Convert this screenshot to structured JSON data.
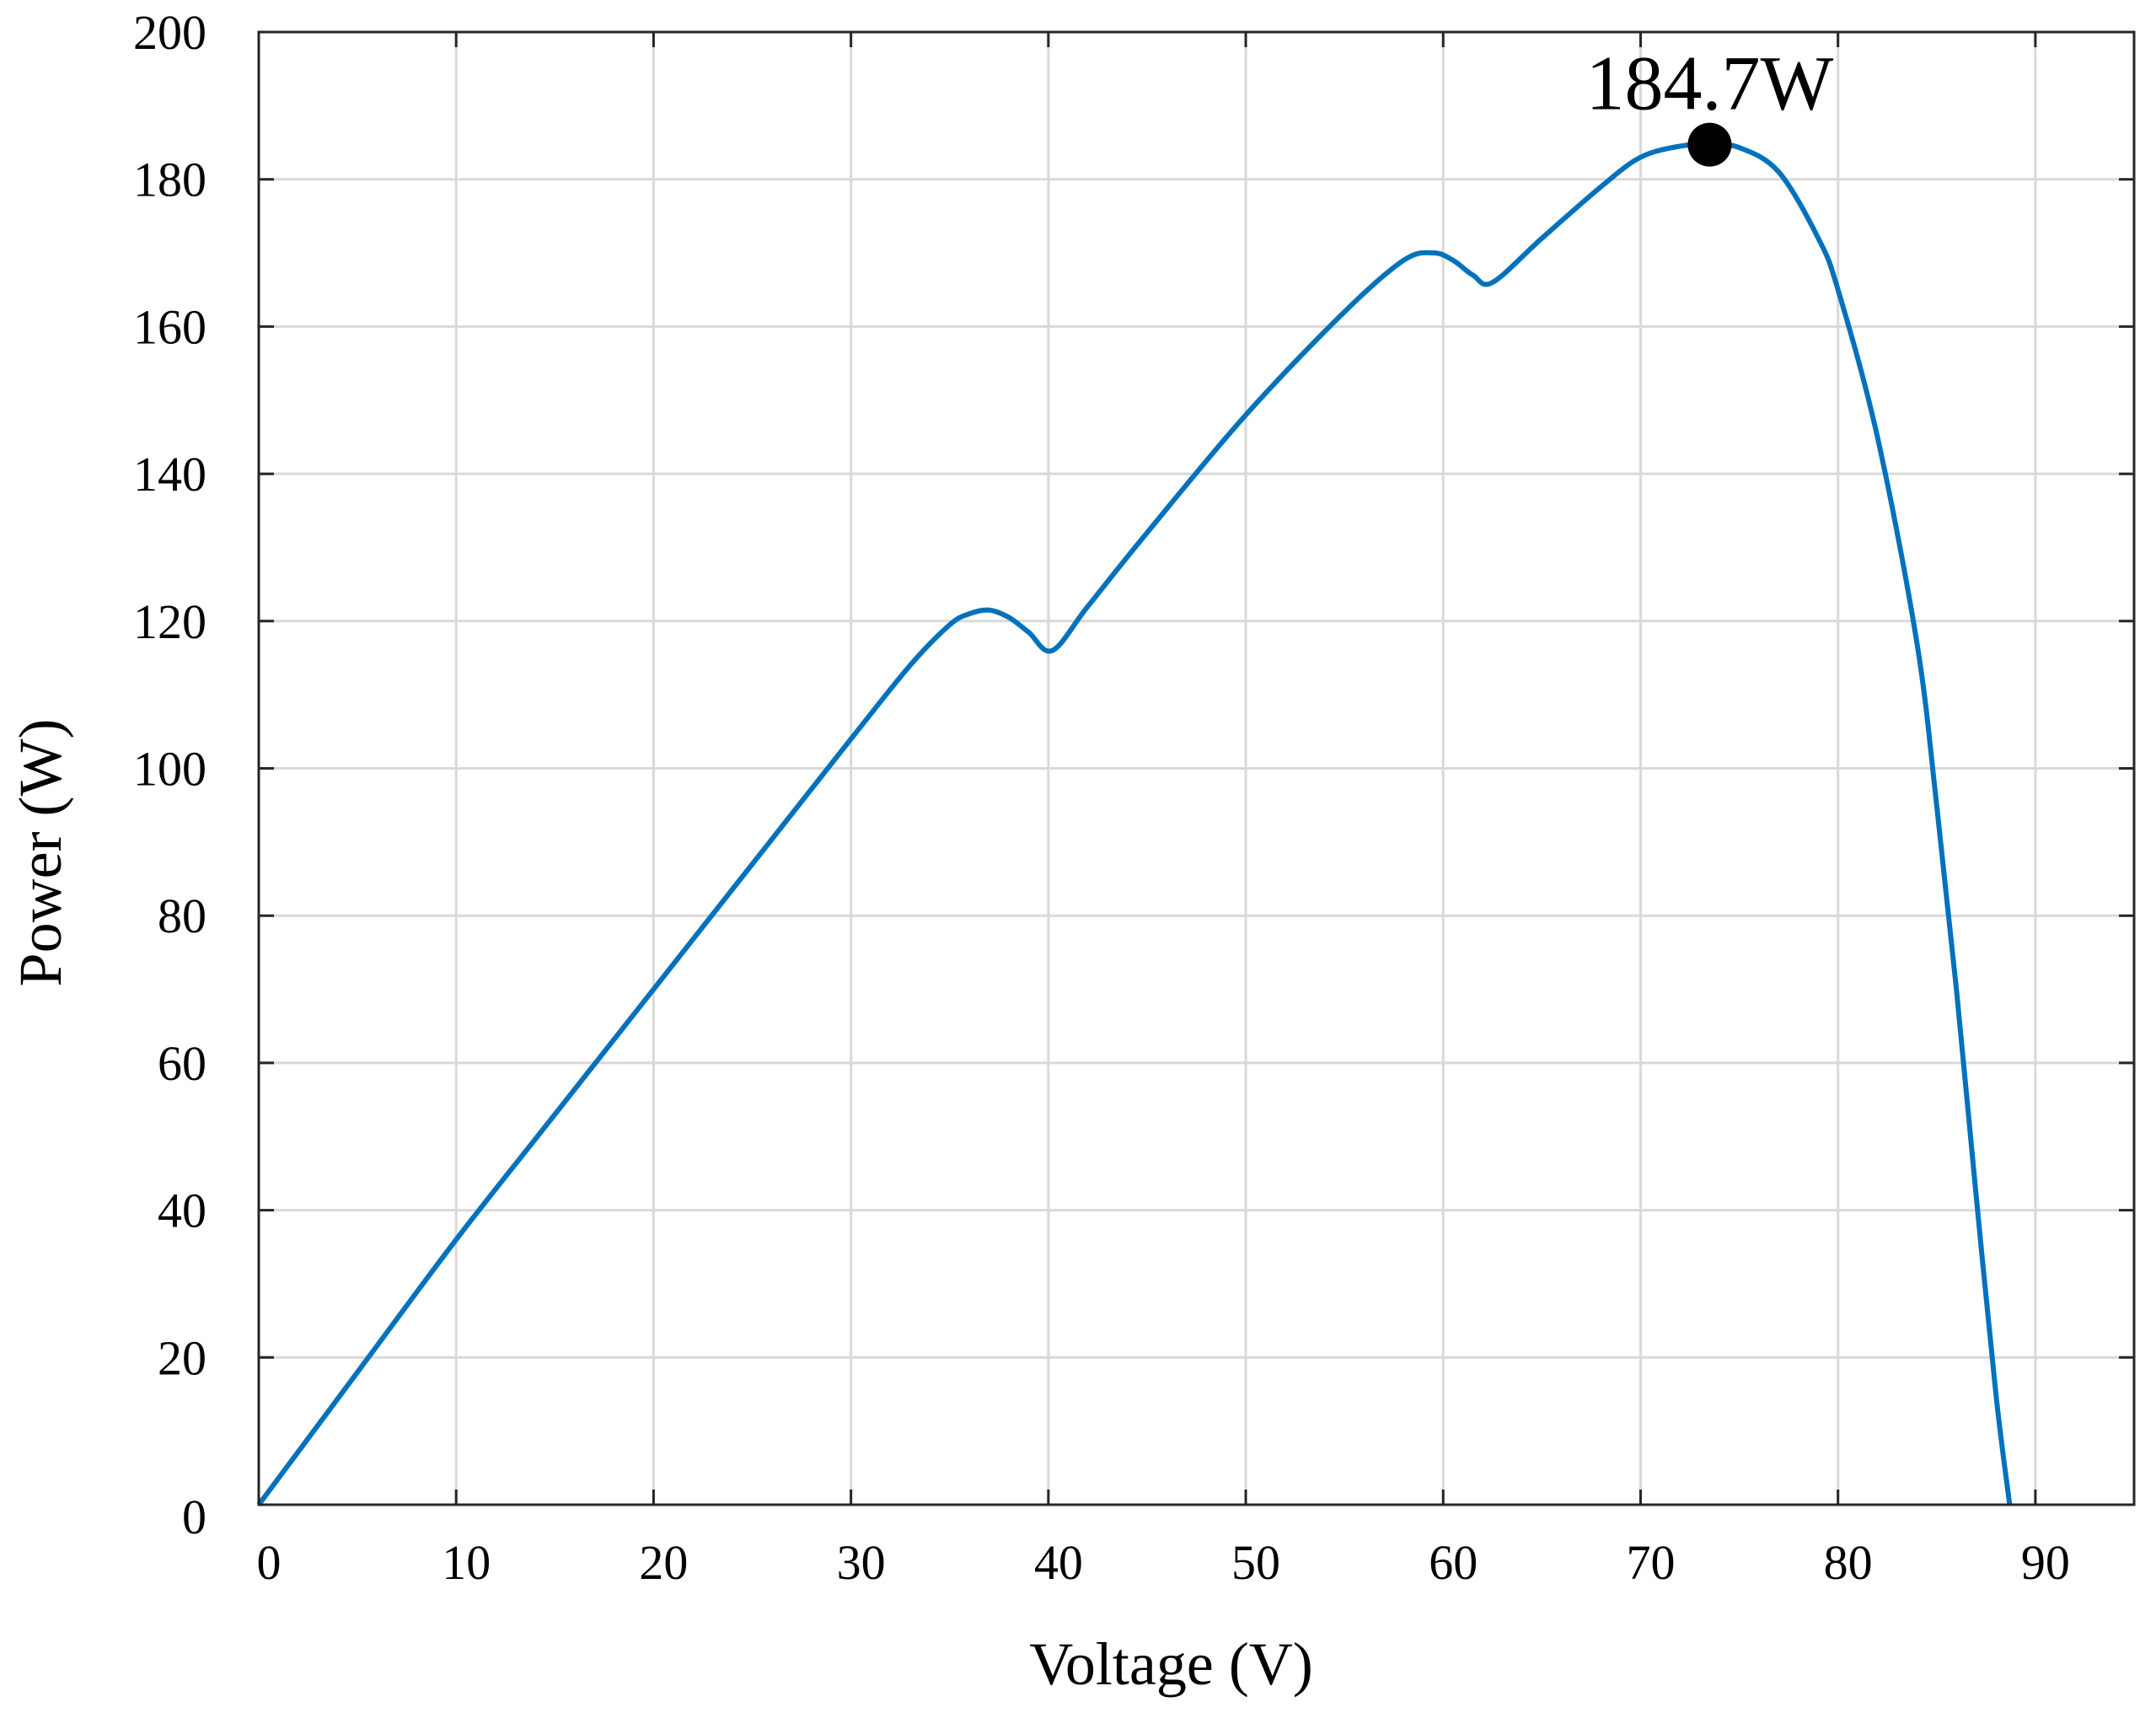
{
  "chart_data": {
    "type": "line",
    "xlabel": "Voltage (V)",
    "ylabel": "Power (W)",
    "xlim": [
      0,
      95
    ],
    "ylim": [
      0,
      200
    ],
    "x_ticks": [
      0,
      10,
      20,
      30,
      40,
      50,
      60,
      70,
      80,
      90
    ],
    "y_ticks": [
      0,
      20,
      40,
      60,
      80,
      100,
      120,
      140,
      160,
      180,
      200
    ],
    "x_tick_labels": [
      "0",
      "10",
      "20",
      "30",
      "40",
      "50",
      "60",
      "70",
      "80",
      "90"
    ],
    "y_tick_labels": [
      "0",
      "20",
      "40",
      "60",
      "80",
      "100",
      "120",
      "140",
      "160",
      "180",
      "200"
    ],
    "grid": true,
    "series": [
      {
        "color": "#0072BD",
        "x": [
          0,
          5,
          10,
          15,
          20,
          25,
          30,
          33,
          35,
          36,
          37,
          38,
          39,
          40.2,
          42,
          45,
          50,
          55,
          58,
          59.5,
          60.5,
          61.5,
          62.5,
          65,
          68,
          70,
          72,
          73.5,
          75,
          77,
          79,
          80,
          82,
          84,
          85,
          86,
          87,
          88,
          88.7
        ],
        "y": [
          0,
          18,
          36,
          53,
          70,
          87,
          104,
          114,
          119.5,
          121,
          121.5,
          120.5,
          118.5,
          116,
          122,
          132,
          148,
          162,
          169,
          170,
          169,
          167,
          166,
          172,
          179,
          183,
          184.5,
          184.7,
          184.3,
          181,
          172,
          165,
          145,
          117,
          95,
          70,
          42,
          15,
          0
        ]
      }
    ],
    "annotations": [
      {
        "text": "184.7W",
        "x": 73.5,
        "y": 184.7,
        "marker": "filled-circle",
        "marker_color": "#000000"
      }
    ]
  }
}
